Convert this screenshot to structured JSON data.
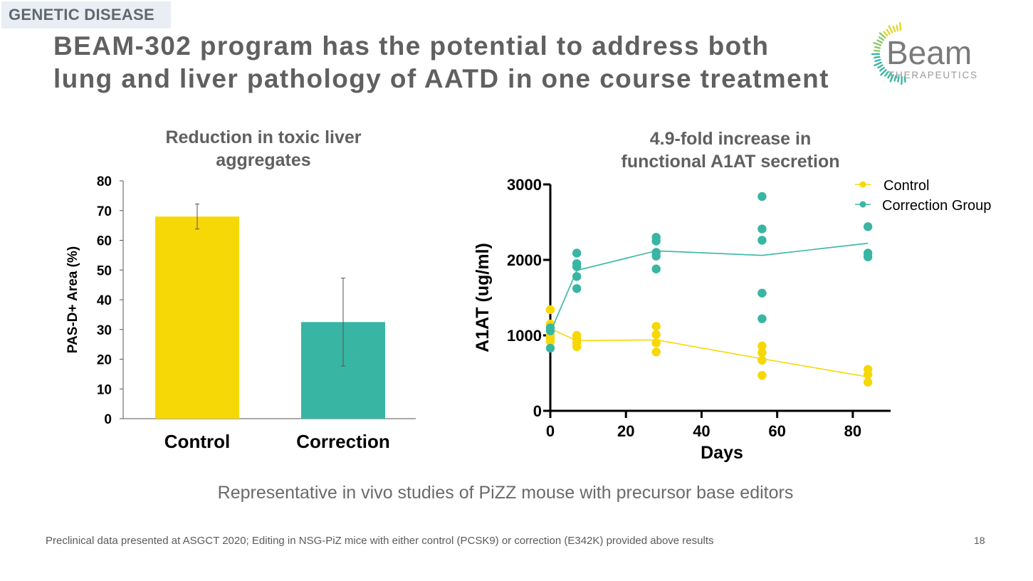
{
  "section_tag": "GENETIC DISEASE",
  "title_line1": "BEAM-302 program has the potential to address both",
  "title_line2": "lung and liver pathology of AATD in one course treatment",
  "logo": {
    "name": "Beam",
    "sub": "THERAPEUTICS"
  },
  "subtitle": "Representative in vivo studies of PiZZ mouse with precursor base editors",
  "footnote": "Preclinical data presented at ASGCT 2020;  Editing in NSG-PiZ mice with either control (PCSK9) or correction (E342K) provided above results",
  "page_number": "18",
  "colors": {
    "control": "#f7d807",
    "correction": "#38b6a3",
    "text": "#606060"
  },
  "chart_data": [
    {
      "type": "bar",
      "title_line1": "Reduction in toxic liver",
      "title_line2": "aggregates",
      "ylabel": "PAS-D+ Area (%)",
      "xlabel": "",
      "ylim": [
        0,
        80
      ],
      "yticks": [
        "0",
        "10",
        "20",
        "30",
        "40",
        "50",
        "60",
        "70",
        "80"
      ],
      "categories": [
        "Control",
        "Correction"
      ],
      "values": [
        68,
        32.5
      ],
      "error": [
        4.2,
        14.8
      ]
    },
    {
      "type": "scatter",
      "title_line1": "4.9-fold increase in",
      "title_line2": "functional A1AT secretion",
      "xlabel": "Days",
      "ylabel": "A1AT (ug/ml)",
      "xlim": [
        0,
        90
      ],
      "ylim": [
        0,
        3000
      ],
      "xticks": [
        "0",
        "20",
        "40",
        "60",
        "80"
      ],
      "yticks": [
        "0",
        "1000",
        "2000",
        "3000"
      ],
      "legend_position": "top-right",
      "series": [
        {
          "name": "Control",
          "mean_line": [
            [
              0,
              1090
            ],
            [
              7,
              930
            ],
            [
              28,
              940
            ],
            [
              56,
              690
            ],
            [
              84,
              450
            ]
          ],
          "points": [
            [
              0,
              1340
            ],
            [
              0,
              1150
            ],
            [
              0,
              1000
            ],
            [
              0,
              960
            ],
            [
              0,
              920
            ],
            [
              7,
              1000
            ],
            [
              7,
              950
            ],
            [
              7,
              900
            ],
            [
              7,
              850
            ],
            [
              28,
              1120
            ],
            [
              28,
              1010
            ],
            [
              28,
              900
            ],
            [
              28,
              780
            ],
            [
              56,
              860
            ],
            [
              56,
              770
            ],
            [
              56,
              670
            ],
            [
              56,
              470
            ],
            [
              84,
              550
            ],
            [
              84,
              480
            ],
            [
              84,
              380
            ]
          ]
        },
        {
          "name": "Correction Group",
          "mean_line": [
            [
              0,
              1040
            ],
            [
              7,
              1860
            ],
            [
              28,
              2120
            ],
            [
              56,
              2060
            ],
            [
              84,
              2220
            ]
          ],
          "points": [
            [
              0,
              1100
            ],
            [
              0,
              1060
            ],
            [
              0,
              830
            ],
            [
              7,
              2090
            ],
            [
              7,
              1950
            ],
            [
              7,
              1910
            ],
            [
              7,
              1780
            ],
            [
              7,
              1620
            ],
            [
              28,
              2300
            ],
            [
              28,
              2250
            ],
            [
              28,
              2100
            ],
            [
              28,
              2050
            ],
            [
              28,
              1880
            ],
            [
              56,
              2840
            ],
            [
              56,
              2410
            ],
            [
              56,
              2260
            ],
            [
              56,
              1560
            ],
            [
              56,
              1220
            ],
            [
              84,
              2440
            ],
            [
              84,
              2090
            ],
            [
              84,
              2040
            ]
          ]
        }
      ]
    }
  ]
}
